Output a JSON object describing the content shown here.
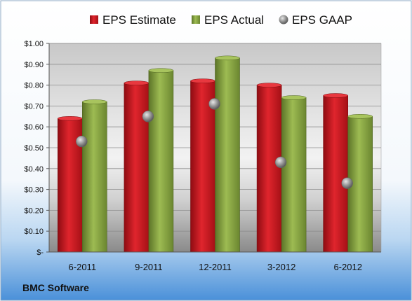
{
  "chart_data": {
    "type": "bar",
    "categories": [
      "6-2011",
      "9-2011",
      "12-2011",
      "3-2012",
      "6-2012"
    ],
    "series": [
      {
        "name": "EPS Estimate",
        "values": [
          0.64,
          0.81,
          0.82,
          0.8,
          0.75
        ],
        "color": "#c8141c",
        "kind": "bar"
      },
      {
        "name": "EPS Actual",
        "values": [
          0.72,
          0.87,
          0.93,
          0.74,
          0.65
        ],
        "color": "#7f9c3a",
        "kind": "bar"
      },
      {
        "name": "EPS GAAP",
        "values": [
          0.53,
          0.65,
          0.71,
          0.43,
          0.33
        ],
        "color": "#9a9a9a",
        "kind": "marker"
      }
    ],
    "ylim": [
      0,
      1.0
    ],
    "y_ticks": [
      "$-",
      "$0.10",
      "$0.20",
      "$0.30",
      "$0.40",
      "$0.50",
      "$0.60",
      "$0.70",
      "$0.80",
      "$0.90",
      "$1.00"
    ],
    "grid": true,
    "legend_position": "top"
  },
  "footer": {
    "company": "BMC Software"
  }
}
